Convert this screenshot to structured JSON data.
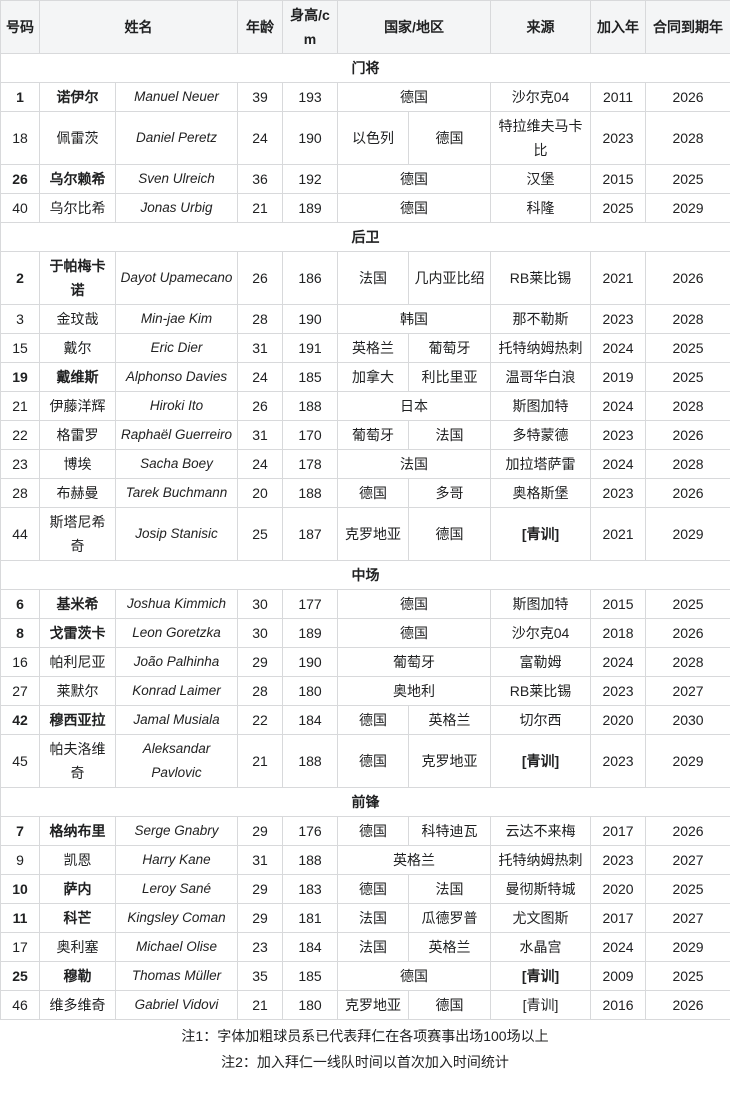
{
  "table": {
    "headers": {
      "number": "号码",
      "name": "姓名",
      "age": "年龄",
      "height": "身高/cm",
      "nationality": "国家/地区",
      "origin": "来源",
      "joined": "加入年",
      "expires": "合同到期年"
    },
    "sections": [
      {
        "title": "门将",
        "players": [
          {
            "number": "1",
            "bold": true,
            "name_zh": "诺伊尔",
            "name_latin": "Manuel Neuer",
            "age": "39",
            "height": "193",
            "nationalities": [
              "德国"
            ],
            "origin": "沙尔克04",
            "origin_bold": false,
            "joined": "2011",
            "expires": "2026"
          },
          {
            "number": "18",
            "bold": false,
            "name_zh": "佩雷茨",
            "name_latin": "Daniel Peretz",
            "age": "24",
            "height": "190",
            "nationalities": [
              "以色列",
              "德国"
            ],
            "origin": "特拉维夫马卡比",
            "origin_bold": false,
            "joined": "2023",
            "expires": "2028"
          },
          {
            "number": "26",
            "bold": true,
            "name_zh": "乌尔赖希",
            "name_latin": "Sven Ulreich",
            "age": "36",
            "height": "192",
            "nationalities": [
              "德国"
            ],
            "origin": "汉堡",
            "origin_bold": false,
            "joined": "2015",
            "expires": "2025"
          },
          {
            "number": "40",
            "bold": false,
            "name_zh": "乌尔比希",
            "name_latin": "Jonas Urbig",
            "age": "21",
            "height": "189",
            "nationalities": [
              "德国"
            ],
            "origin": "科隆",
            "origin_bold": false,
            "joined": "2025",
            "expires": "2029"
          }
        ]
      },
      {
        "title": "后卫",
        "players": [
          {
            "number": "2",
            "bold": true,
            "name_zh": "于帕梅卡诺",
            "name_latin": "Dayot Upamecano",
            "age": "26",
            "height": "186",
            "nationalities": [
              "法国",
              "几内亚比绍"
            ],
            "origin": "RB莱比锡",
            "origin_bold": false,
            "joined": "2021",
            "expires": "2026"
          },
          {
            "number": "3",
            "bold": false,
            "name_zh": "金玟哉",
            "name_latin": "Min-jae Kim",
            "age": "28",
            "height": "190",
            "nationalities": [
              "韩国"
            ],
            "origin": "那不勒斯",
            "origin_bold": false,
            "joined": "2023",
            "expires": "2028"
          },
          {
            "number": "15",
            "bold": false,
            "name_zh": "戴尔",
            "name_latin": "Eric Dier",
            "age": "31",
            "height": "191",
            "nationalities": [
              "英格兰",
              "葡萄牙"
            ],
            "origin": "托特纳姆热刺",
            "origin_bold": false,
            "joined": "2024",
            "expires": "2025"
          },
          {
            "number": "19",
            "bold": true,
            "name_zh": "戴维斯",
            "name_latin": "Alphonso Davies",
            "age": "24",
            "height": "185",
            "nationalities": [
              "加拿大",
              "利比里亚"
            ],
            "origin": "温哥华白浪",
            "origin_bold": false,
            "joined": "2019",
            "expires": "2025"
          },
          {
            "number": "21",
            "bold": false,
            "name_zh": "伊藤洋辉",
            "name_latin": "Hiroki Ito",
            "age": "26",
            "height": "188",
            "nationalities": [
              "日本"
            ],
            "origin": "斯图加特",
            "origin_bold": false,
            "joined": "2024",
            "expires": "2028"
          },
          {
            "number": "22",
            "bold": false,
            "name_zh": "格雷罗",
            "name_latin": "Raphaël Guerreiro",
            "age": "31",
            "height": "170",
            "nationalities": [
              "葡萄牙",
              "法国"
            ],
            "origin": "多特蒙德",
            "origin_bold": false,
            "joined": "2023",
            "expires": "2026"
          },
          {
            "number": "23",
            "bold": false,
            "name_zh": "博埃",
            "name_latin": "Sacha Boey",
            "age": "24",
            "height": "178",
            "nationalities": [
              "法国"
            ],
            "origin": "加拉塔萨雷",
            "origin_bold": false,
            "joined": "2024",
            "expires": "2028"
          },
          {
            "number": "28",
            "bold": false,
            "name_zh": "布赫曼",
            "name_latin": "Tarek Buchmann",
            "age": "20",
            "height": "188",
            "nationalities": [
              "德国",
              "多哥"
            ],
            "origin": "奥格斯堡",
            "origin_bold": false,
            "joined": "2023",
            "expires": "2026"
          },
          {
            "number": "44",
            "bold": false,
            "name_zh": "斯塔尼希奇",
            "name_latin": "Josip Stanisic",
            "age": "25",
            "height": "187",
            "nationalities": [
              "克罗地亚",
              "德国"
            ],
            "origin": "[青训]",
            "origin_bold": true,
            "joined": "2021",
            "expires": "2029"
          }
        ]
      },
      {
        "title": "中场",
        "players": [
          {
            "number": "6",
            "bold": true,
            "name_zh": "基米希",
            "name_latin": "Joshua Kimmich",
            "age": "30",
            "height": "177",
            "nationalities": [
              "德国"
            ],
            "origin": "斯图加特",
            "origin_bold": false,
            "joined": "2015",
            "expires": "2025"
          },
          {
            "number": "8",
            "bold": true,
            "name_zh": "戈雷茨卡",
            "name_latin": "Leon Goretzka",
            "age": "30",
            "height": "189",
            "nationalities": [
              "德国"
            ],
            "origin": "沙尔克04",
            "origin_bold": false,
            "joined": "2018",
            "expires": "2026"
          },
          {
            "number": "16",
            "bold": false,
            "name_zh": "帕利尼亚",
            "name_latin": "João Palhinha",
            "age": "29",
            "height": "190",
            "nationalities": [
              "葡萄牙"
            ],
            "origin": "富勒姆",
            "origin_bold": false,
            "joined": "2024",
            "expires": "2028"
          },
          {
            "number": "27",
            "bold": false,
            "name_zh": "莱默尔",
            "name_latin": "Konrad Laimer",
            "age": "28",
            "height": "180",
            "nationalities": [
              "奥地利"
            ],
            "origin": "RB莱比锡",
            "origin_bold": false,
            "joined": "2023",
            "expires": "2027"
          },
          {
            "number": "42",
            "bold": true,
            "name_zh": "穆西亚拉",
            "name_latin": "Jamal Musiala",
            "age": "22",
            "height": "184",
            "nationalities": [
              "德国",
              "英格兰"
            ],
            "origin": "切尔西",
            "origin_bold": false,
            "joined": "2020",
            "expires": "2030"
          },
          {
            "number": "45",
            "bold": false,
            "name_zh": "帕夫洛维奇",
            "name_latin": "Aleksandar Pavlovic",
            "age": "21",
            "height": "188",
            "nationalities": [
              "德国",
              "克罗地亚"
            ],
            "origin": "[青训]",
            "origin_bold": true,
            "joined": "2023",
            "expires": "2029"
          }
        ]
      },
      {
        "title": "前锋",
        "players": [
          {
            "number": "7",
            "bold": true,
            "name_zh": "格纳布里",
            "name_latin": "Serge Gnabry",
            "age": "29",
            "height": "176",
            "nationalities": [
              "德国",
              "科特迪瓦"
            ],
            "origin": "云达不来梅",
            "origin_bold": false,
            "joined": "2017",
            "expires": "2026"
          },
          {
            "number": "9",
            "bold": false,
            "name_zh": "凯恩",
            "name_latin": "Harry Kane",
            "age": "31",
            "height": "188",
            "nationalities": [
              "英格兰"
            ],
            "origin": "托特纳姆热刺",
            "origin_bold": false,
            "joined": "2023",
            "expires": "2027"
          },
          {
            "number": "10",
            "bold": true,
            "name_zh": "萨内",
            "name_latin": "Leroy Sané",
            "age": "29",
            "height": "183",
            "nationalities": [
              "德国",
              "法国"
            ],
            "origin": "曼彻斯特城",
            "origin_bold": false,
            "joined": "2020",
            "expires": "2025"
          },
          {
            "number": "11",
            "bold": true,
            "name_zh": "科芒",
            "name_latin": "Kingsley Coman",
            "age": "29",
            "height": "181",
            "nationalities": [
              "法国",
              "瓜德罗普"
            ],
            "origin": "尤文图斯",
            "origin_bold": false,
            "joined": "2017",
            "expires": "2027"
          },
          {
            "number": "17",
            "bold": false,
            "name_zh": "奥利塞",
            "name_latin": "Michael Olise",
            "age": "23",
            "height": "184",
            "nationalities": [
              "法国",
              "英格兰"
            ],
            "origin": "水晶宫",
            "origin_bold": false,
            "joined": "2024",
            "expires": "2029"
          },
          {
            "number": "25",
            "bold": true,
            "name_zh": "穆勒",
            "name_latin": "Thomas Müller",
            "age": "35",
            "height": "185",
            "nationalities": [
              "德国"
            ],
            "origin": "[青训]",
            "origin_bold": true,
            "joined": "2009",
            "expires": "2025"
          },
          {
            "number": "46",
            "bold": false,
            "name_zh": "维多维奇",
            "name_latin": "Gabriel Vidovi",
            "age": "21",
            "height": "180",
            "nationalities": [
              "克罗地亚",
              "德国"
            ],
            "origin": "[青训]",
            "origin_bold": false,
            "joined": "2016",
            "expires": "2026"
          }
        ]
      }
    ],
    "notes": [
      "注1：字体加粗球员系已代表拜仁在各项赛事出场100场以上",
      "注2：加入拜仁一线队时间以首次加入时间统计"
    ]
  }
}
